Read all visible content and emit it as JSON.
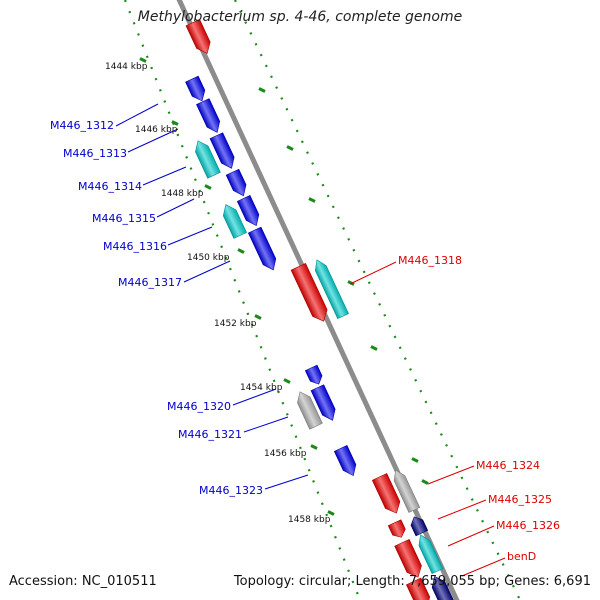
{
  "map": {
    "title": "Methylobacterium sp. 4-46, complete genome",
    "accession": "Accession: NC_010511",
    "summary": "Topology: circular; Length: 7,659,055 bp; Genes: 6,691"
  },
  "colors": {
    "backbone": "#8c8c8c",
    "tick": "#1a8a1a",
    "gene_forward": "#0000ee",
    "gene_reverse": "#ee0000",
    "gene_rna": "#00cccc",
    "gene_other": "#b0b0b0",
    "gene_dark": "#000080",
    "label_forward": "#0000cc",
    "label_reverse": "#dd0000"
  },
  "ticks": [
    {
      "label": "1444 kbp"
    },
    {
      "label": "1446 kbp"
    },
    {
      "label": "1448 kbp"
    },
    {
      "label": "1450 kbp"
    },
    {
      "label": "1452 kbp"
    },
    {
      "label": "1454 kbp"
    },
    {
      "label": "1456 kbp"
    },
    {
      "label": "1458 kbp"
    }
  ],
  "labels_forward": [
    "M446_1312",
    "M446_1313",
    "M446_1314",
    "M446_1315",
    "M446_1316",
    "M446_1317",
    "M446_1320",
    "M446_1321",
    "M446_1323"
  ],
  "labels_reverse": [
    "M446_1318",
    "M446_1324",
    "M446_1325",
    "M446_1326",
    "benD"
  ]
}
